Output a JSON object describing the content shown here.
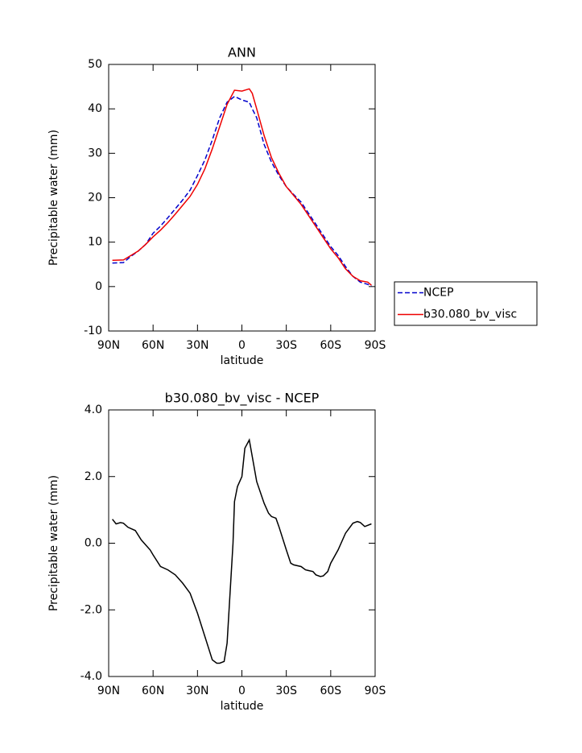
{
  "chart_data": [
    {
      "type": "line",
      "title": "ANN",
      "xlabel": "latitude",
      "ylabel": "Precipitable water (mm)",
      "x": [
        87.5,
        80,
        75,
        70,
        65,
        60,
        55,
        50,
        45,
        40,
        35,
        30,
        25,
        20,
        15,
        10,
        5,
        0,
        -5,
        -7,
        -10,
        -15,
        -20,
        -25,
        -30,
        -35,
        -40,
        -45,
        -50,
        -55,
        -60,
        -65,
        -70,
        -75,
        -80,
        -85,
        -87.5
      ],
      "series": [
        {
          "name": "NCEP",
          "color": "#0000cc",
          "linestyle": "dashed",
          "values": [
            5.3,
            5.4,
            6.8,
            8,
            9.5,
            12,
            13.6,
            15.5,
            17.5,
            19.5,
            21.7,
            25,
            28.5,
            33,
            38,
            41.5,
            42.8,
            42,
            41.5,
            40,
            38,
            32,
            28,
            25,
            22.5,
            20.7,
            19,
            16.5,
            14,
            11.5,
            9,
            7,
            4.5,
            2.3,
            1.0,
            0.5,
            0.1
          ]
        },
        {
          "name": "b30.080_bv_visc",
          "color": "#ee0000",
          "linestyle": "solid",
          "values": [
            5.9,
            6.0,
            7,
            8,
            9.5,
            11.2,
            12.7,
            14.4,
            16.3,
            18.3,
            20.3,
            23,
            26.5,
            31,
            36,
            41,
            44.2,
            44,
            44.5,
            43.5,
            40,
            34,
            29,
            25.5,
            22.5,
            20.5,
            18.5,
            16,
            13.5,
            11,
            8.5,
            6.5,
            4,
            2.3,
            1.3,
            1.0,
            0.3
          ]
        }
      ],
      "xlim": [
        90,
        -90
      ],
      "xticks": [
        {
          "value": 90,
          "label": "90N"
        },
        {
          "value": 60,
          "label": "60N"
        },
        {
          "value": 30,
          "label": "30N"
        },
        0,
        {
          "value": -30,
          "label": "30S"
        },
        {
          "value": -60,
          "label": "60S"
        },
        {
          "value": -90,
          "label": "90S"
        }
      ],
      "ylim": [
        -10,
        50
      ],
      "yticks": [
        -10,
        0,
        10,
        20,
        30,
        40,
        50
      ],
      "legend_position": "right"
    },
    {
      "type": "line",
      "title": "b30.080_bv_visc - NCEP",
      "xlabel": "latitude",
      "ylabel": "Precipitable water (mm)",
      "x": [
        87.5,
        85,
        82,
        80,
        77,
        72,
        68,
        65,
        62,
        60,
        55,
        50,
        45,
        40,
        35,
        30,
        25,
        20,
        17,
        15,
        12,
        10,
        8,
        6,
        5,
        3,
        0,
        -2,
        -5,
        -7,
        -10,
        -15,
        -18,
        -20,
        -23,
        -25,
        -30,
        -33,
        -35,
        -40,
        -43,
        -48,
        -50,
        -53,
        -55,
        -58,
        -60,
        -65,
        -70,
        -75,
        -78,
        -80,
        -83,
        -87.5
      ],
      "series": [
        {
          "color": "#000000",
          "linestyle": "solid",
          "values": [
            0.72,
            0.58,
            0.62,
            0.6,
            0.48,
            0.38,
            0.1,
            -0.05,
            -0.2,
            -0.35,
            -0.7,
            -0.8,
            -0.95,
            -1.2,
            -1.5,
            -2.1,
            -2.8,
            -3.5,
            -3.6,
            -3.6,
            -3.55,
            -3.0,
            -1.5,
            0,
            1.25,
            1.7,
            2.0,
            2.85,
            3.1,
            2.6,
            1.85,
            1.2,
            0.9,
            0.8,
            0.75,
            0.5,
            -0.2,
            -0.6,
            -0.65,
            -0.7,
            -0.8,
            -0.85,
            -0.95,
            -1.0,
            -0.98,
            -0.85,
            -0.6,
            -0.2,
            0.3,
            0.6,
            0.65,
            0.62,
            0.5,
            0.58
          ]
        }
      ],
      "xlim": [
        90,
        -90
      ],
      "xticks": [
        {
          "value": 90,
          "label": "90N"
        },
        {
          "value": 60,
          "label": "60N"
        },
        {
          "value": 30,
          "label": "30N"
        },
        0,
        {
          "value": -30,
          "label": "30S"
        },
        {
          "value": -60,
          "label": "60S"
        },
        {
          "value": -90,
          "label": "90S"
        }
      ],
      "ylim": [
        -4,
        4
      ],
      "yticks": [
        {
          "value": -4,
          "label": "-4.0"
        },
        {
          "value": -2,
          "label": "-2.0"
        },
        {
          "value": 0,
          "label": "0.0"
        },
        {
          "value": 2,
          "label": "2.0"
        },
        {
          "value": 4,
          "label": "4.0"
        }
      ]
    }
  ]
}
